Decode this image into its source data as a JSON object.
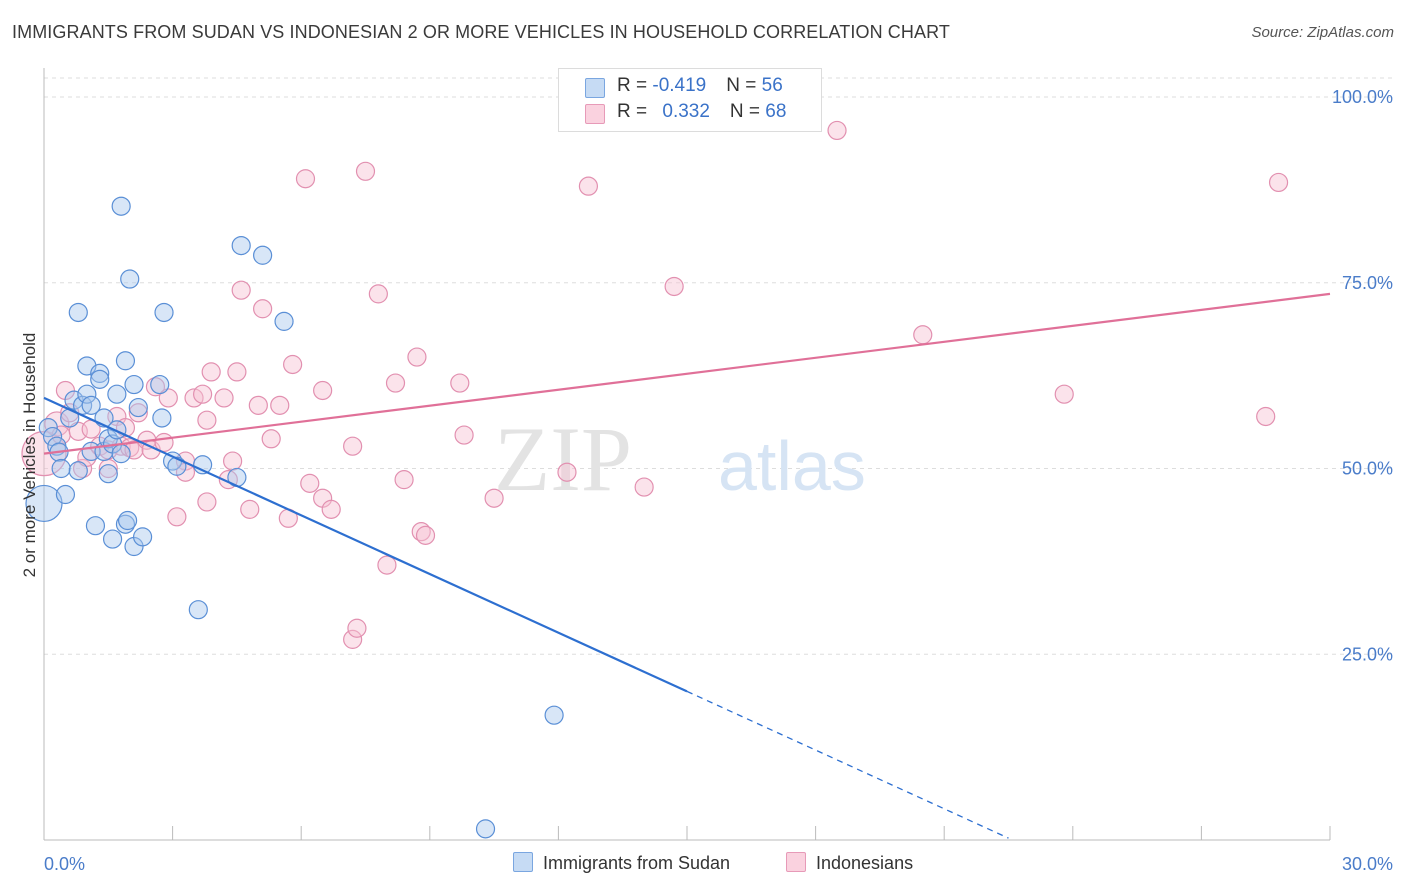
{
  "title": "IMMIGRANTS FROM SUDAN VS INDONESIAN 2 OR MORE VEHICLES IN HOUSEHOLD CORRELATION CHART",
  "source": "Source: ZipAtlas.com",
  "watermark": {
    "zip": "ZIP",
    "atlas": "atlas"
  },
  "legend": {
    "rows": [
      {
        "r_label": "R = ",
        "r_value": "-0.419",
        "n_label": "N = ",
        "n_value": "56"
      },
      {
        "r_label": "R = ",
        "r_value": "0.332",
        "n_label": "N = ",
        "n_value": "68"
      }
    ]
  },
  "bottom_legend": {
    "sudan": "Immigrants from Sudan",
    "indonesians": "Indonesians"
  },
  "colors": {
    "sudan_fill": "#a8c8ee",
    "sudan_stroke": "#5a8fd6",
    "sudan_line": "#2d6fd0",
    "indo_fill": "#f6c0d2",
    "indo_stroke": "#e290b0",
    "indo_line": "#e07098",
    "tick_label": "#4a7cc9",
    "grid": "#dddddd"
  },
  "chart_data": {
    "type": "scatter",
    "title": "IMMIGRANTS FROM SUDAN VS INDONESIAN 2 OR MORE VEHICLES IN HOUSEHOLD CORRELATION CHART",
    "xlabel": "",
    "ylabel": "2 or more Vehicles in Household",
    "xlim": [
      0,
      30
    ],
    "ylim": [
      0,
      100
    ],
    "x_tick_labels": [
      "0.0%",
      "30.0%"
    ],
    "y_ticks": [
      25,
      50,
      75,
      100
    ],
    "y_tick_labels": [
      "25.0%",
      "50.0%",
      "75.0%",
      "100.0%"
    ],
    "grid": true,
    "legend_position": "top-center",
    "series": [
      {
        "name": "Immigrants from Sudan",
        "r": -0.419,
        "n": 56,
        "trend": {
          "x0": 0.0,
          "y0": 59.5,
          "x1": 15.0,
          "y1": 20.0,
          "dash_to_x": 22.5
        },
        "points": [
          [
            0.0,
            45.3,
            18
          ],
          [
            0.1,
            55.5,
            9
          ],
          [
            0.2,
            54.3,
            9
          ],
          [
            0.3,
            53.0,
            9
          ],
          [
            0.35,
            52.2,
            9
          ],
          [
            0.4,
            50.0,
            9
          ],
          [
            0.5,
            46.5,
            9
          ],
          [
            0.6,
            56.8,
            9
          ],
          [
            0.7,
            59.2,
            9
          ],
          [
            0.8,
            49.7,
            9
          ],
          [
            0.8,
            71.0,
            9
          ],
          [
            0.9,
            58.5,
            9
          ],
          [
            1.0,
            60.0,
            9
          ],
          [
            1.0,
            63.8,
            9
          ],
          [
            1.1,
            58.5,
            9
          ],
          [
            1.1,
            52.3,
            9
          ],
          [
            1.2,
            42.3,
            9
          ],
          [
            1.3,
            62.8,
            9
          ],
          [
            1.3,
            62.0,
            9
          ],
          [
            1.4,
            56.8,
            9
          ],
          [
            1.4,
            52.3,
            9
          ],
          [
            1.5,
            49.3,
            9
          ],
          [
            1.5,
            54.0,
            9
          ],
          [
            1.6,
            53.3,
            9
          ],
          [
            1.6,
            40.5,
            9
          ],
          [
            1.7,
            60.0,
            9
          ],
          [
            1.7,
            55.2,
            9
          ],
          [
            1.8,
            52.0,
            9
          ],
          [
            1.8,
            85.3,
            9
          ],
          [
            1.9,
            64.5,
            9
          ],
          [
            1.9,
            42.5,
            9
          ],
          [
            1.95,
            43.0,
            9
          ],
          [
            2.0,
            75.5,
            9
          ],
          [
            2.1,
            39.5,
            9
          ],
          [
            2.1,
            61.3,
            9
          ],
          [
            2.2,
            58.2,
            9
          ],
          [
            2.3,
            40.8,
            9
          ],
          [
            2.7,
            61.3,
            9
          ],
          [
            2.75,
            56.8,
            9
          ],
          [
            2.8,
            71.0,
            9
          ],
          [
            3.0,
            51.0,
            9
          ],
          [
            3.1,
            50.3,
            9
          ],
          [
            3.6,
            31.0,
            9
          ],
          [
            3.7,
            50.5,
            9
          ],
          [
            4.5,
            48.8,
            9
          ],
          [
            4.6,
            80.0,
            9
          ],
          [
            5.1,
            78.7,
            9
          ],
          [
            5.6,
            69.8,
            9
          ],
          [
            11.9,
            16.8,
            9
          ],
          [
            10.3,
            1.5,
            9
          ]
        ]
      },
      {
        "name": "Indonesians",
        "r": 0.332,
        "n": 68,
        "trend": {
          "x0": 0.0,
          "y0": 52.0,
          "x1": 30.0,
          "y1": 73.5
        },
        "points": [
          [
            0.0,
            52.0,
            22
          ],
          [
            0.3,
            56.0,
            12
          ],
          [
            0.4,
            54.5,
            9
          ],
          [
            0.5,
            60.5,
            9
          ],
          [
            0.6,
            57.5,
            9
          ],
          [
            0.8,
            55.0,
            9
          ],
          [
            0.9,
            50.0,
            9
          ],
          [
            1.0,
            51.5,
            9
          ],
          [
            1.1,
            55.3,
            9
          ],
          [
            1.3,
            53.0,
            9
          ],
          [
            1.5,
            50.0,
            9
          ],
          [
            1.5,
            52.5,
            9
          ],
          [
            1.7,
            57.0,
            9
          ],
          [
            1.8,
            53.0,
            9
          ],
          [
            1.9,
            55.5,
            9
          ],
          [
            2.0,
            52.8,
            9
          ],
          [
            2.1,
            52.5,
            9
          ],
          [
            2.2,
            57.5,
            9
          ],
          [
            2.4,
            53.8,
            9
          ],
          [
            2.5,
            52.5,
            9
          ],
          [
            2.6,
            61.0,
            9
          ],
          [
            2.8,
            53.5,
            9
          ],
          [
            2.9,
            59.5,
            9
          ],
          [
            3.1,
            43.5,
            9
          ],
          [
            3.3,
            51.0,
            9
          ],
          [
            3.3,
            49.5,
            9
          ],
          [
            3.5,
            59.5,
            9
          ],
          [
            3.7,
            60.0,
            9
          ],
          [
            3.8,
            45.5,
            9
          ],
          [
            3.8,
            56.5,
            9
          ],
          [
            3.9,
            63.0,
            9
          ],
          [
            4.2,
            59.5,
            9
          ],
          [
            4.3,
            48.5,
            9
          ],
          [
            4.4,
            51.0,
            9
          ],
          [
            4.5,
            63.0,
            9
          ],
          [
            4.6,
            74.0,
            9
          ],
          [
            4.8,
            44.5,
            9
          ],
          [
            5.0,
            58.5,
            9
          ],
          [
            5.1,
            71.5,
            9
          ],
          [
            5.3,
            54.0,
            9
          ],
          [
            5.5,
            58.5,
            9
          ],
          [
            5.7,
            43.3,
            9
          ],
          [
            5.8,
            64.0,
            9
          ],
          [
            6.1,
            89.0,
            9
          ],
          [
            6.2,
            48.0,
            9
          ],
          [
            6.5,
            46.0,
            9
          ],
          [
            6.5,
            60.5,
            9
          ],
          [
            6.7,
            44.5,
            9
          ],
          [
            7.2,
            53.0,
            9
          ],
          [
            7.2,
            27.0,
            9
          ],
          [
            7.3,
            28.5,
            9
          ],
          [
            7.5,
            90.0,
            9
          ],
          [
            7.8,
            73.5,
            9
          ],
          [
            8.0,
            37.0,
            9
          ],
          [
            8.2,
            61.5,
            9
          ],
          [
            8.4,
            48.5,
            9
          ],
          [
            8.7,
            65.0,
            9
          ],
          [
            8.8,
            41.5,
            9
          ],
          [
            8.9,
            41.0,
            9
          ],
          [
            9.7,
            61.5,
            9
          ],
          [
            9.8,
            54.5,
            9
          ],
          [
            10.5,
            46.0,
            9
          ],
          [
            12.2,
            49.5,
            9
          ],
          [
            12.7,
            88.0,
            9
          ],
          [
            14.0,
            47.5,
            9
          ],
          [
            14.7,
            74.5,
            9
          ],
          [
            18.5,
            95.5,
            9
          ],
          [
            20.5,
            68.0,
            9
          ],
          [
            23.8,
            60.0,
            9
          ],
          [
            28.5,
            57.0,
            9
          ],
          [
            28.8,
            88.5,
            9
          ]
        ]
      }
    ]
  }
}
